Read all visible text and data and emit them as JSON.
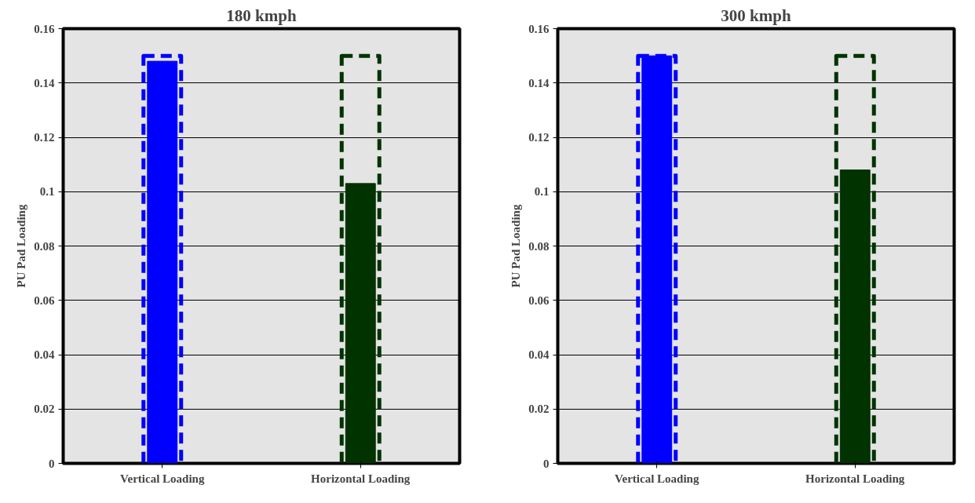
{
  "chart_data": [
    {
      "type": "bar",
      "title": "180 kmph",
      "ylabel": "PU Pad Loading",
      "categories": [
        "Vertical Loading",
        "Horizontal Loading"
      ],
      "ylim": [
        0,
        0.16
      ],
      "yticks": [
        0,
        0.02,
        0.04,
        0.06,
        0.08,
        0.1,
        0.12,
        0.14,
        0.16
      ],
      "grid": "y",
      "series": [
        {
          "colors": [
            "#0000ff",
            "#003300"
          ],
          "values": [
            0.148,
            0.103
          ]
        },
        {
          "colors": [
            "#0000ff",
            "#003300"
          ],
          "values": [
            0.15,
            0.15
          ],
          "line_style": "dashed"
        }
      ]
    },
    {
      "type": "bar",
      "title": "300 kmph",
      "ylabel": "PU Pad Loading",
      "categories": [
        "Vertical Loading",
        "Horizontal Loading"
      ],
      "ylim": [
        0,
        0.16
      ],
      "yticks": [
        0,
        0.02,
        0.04,
        0.06,
        0.08,
        0.1,
        0.12,
        0.14,
        0.16
      ],
      "grid": "y",
      "series": [
        {
          "colors": [
            "#0000ff",
            "#003300"
          ],
          "values": [
            0.15,
            0.108
          ]
        },
        {
          "colors": [
            "#0000ff",
            "#003300"
          ],
          "values": [
            0.15,
            0.15
          ],
          "line_style": "dashed"
        }
      ]
    }
  ]
}
